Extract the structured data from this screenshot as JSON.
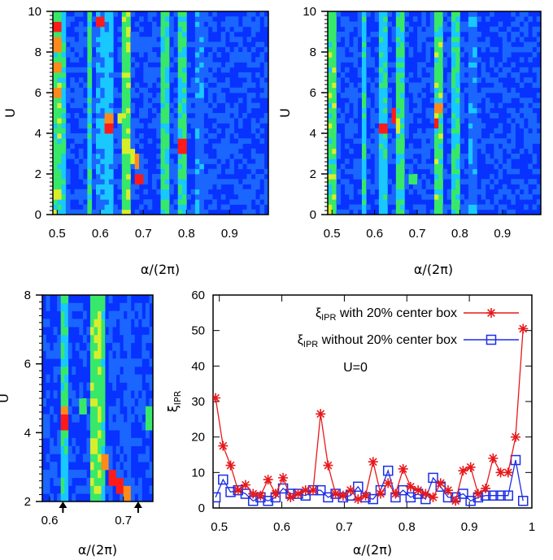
{
  "chart_data": [
    {
      "type": "heatmap",
      "panel": "top-left",
      "xlabel": "α/(2π)",
      "ylabel": "U",
      "xlim": [
        0.49,
        0.99
      ],
      "ylim": [
        0,
        10
      ],
      "xticks": [
        "0.5",
        "0.6",
        "0.7",
        "0.8",
        "0.9"
      ],
      "yticks": [
        "0",
        "2",
        "4",
        "6",
        "8",
        "10"
      ],
      "colors": {
        "background": "#0832ff",
        "low": "#1a66ff",
        "mid": "#19c8ff",
        "green": "#37e86a",
        "yellow": "#d8ee2a",
        "orange": "#ff8a1a",
        "red": "#ff1a1a"
      },
      "bands": [
        {
          "x": 0.497,
          "w": 0.012,
          "level": 0.55
        },
        {
          "x": 0.514,
          "w": 0.006,
          "level": 0.45
        },
        {
          "x": 0.575,
          "w": 0.008,
          "level": 0.45
        },
        {
          "x": 0.598,
          "w": 0.008,
          "level": 0.3
        },
        {
          "x": 0.619,
          "w": 0.006,
          "level": 0.35
        },
        {
          "x": 0.66,
          "w": 0.008,
          "level": 0.6
        },
        {
          "x": 0.667,
          "w": 0.006,
          "level": 0.5
        },
        {
          "x": 0.75,
          "w": 0.008,
          "level": 0.5
        },
        {
          "x": 0.791,
          "w": 0.008,
          "level": 0.5
        },
        {
          "x": 0.83,
          "w": 0.006,
          "level": 0.25
        }
      ],
      "hot": [
        {
          "x": 0.503,
          "y": 9.2,
          "level": 0.95
        },
        {
          "x": 0.503,
          "y": 8.4,
          "level": 0.85
        },
        {
          "x": 0.503,
          "y": 7.2,
          "level": 0.8
        },
        {
          "x": 0.503,
          "y": 6.0,
          "level": 0.85
        },
        {
          "x": 0.5,
          "y": 1.0,
          "level": 0.75
        },
        {
          "x": 0.6,
          "y": 9.5,
          "level": 0.95
        },
        {
          "x": 0.617,
          "y": 4.2,
          "level": 0.95
        },
        {
          "x": 0.622,
          "y": 4.6,
          "level": 0.8
        },
        {
          "x": 0.645,
          "y": 4.7,
          "level": 0.7
        },
        {
          "x": 0.66,
          "y": 3.4,
          "level": 0.7
        },
        {
          "x": 0.675,
          "y": 2.9,
          "level": 0.75
        },
        {
          "x": 0.685,
          "y": 2.6,
          "level": 0.85
        },
        {
          "x": 0.69,
          "y": 1.8,
          "level": 0.9
        },
        {
          "x": 0.791,
          "y": 3.4,
          "level": 0.9
        }
      ]
    },
    {
      "type": "heatmap",
      "panel": "top-right",
      "xlabel": "α/(2π)",
      "ylabel": "U",
      "xlim": [
        0.49,
        0.99
      ],
      "ylim": [
        0,
        10
      ],
      "xticks": [
        "0.5",
        "0.6",
        "0.7",
        "0.8",
        "0.9"
      ],
      "yticks": [
        "0",
        "2",
        "4",
        "6",
        "8",
        "10"
      ],
      "bands": [
        {
          "x": 0.497,
          "w": 0.012,
          "level": 0.55
        },
        {
          "x": 0.575,
          "w": 0.008,
          "level": 0.4
        },
        {
          "x": 0.619,
          "w": 0.006,
          "level": 0.4
        },
        {
          "x": 0.66,
          "w": 0.008,
          "level": 0.5
        },
        {
          "x": 0.75,
          "w": 0.008,
          "level": 0.55
        },
        {
          "x": 0.791,
          "w": 0.008,
          "level": 0.45
        },
        {
          "x": 0.83,
          "w": 0.006,
          "level": 0.25
        }
      ],
      "hot": [
        {
          "x": 0.617,
          "y": 4.3,
          "level": 0.9
        },
        {
          "x": 0.645,
          "y": 4.9,
          "level": 0.95
        },
        {
          "x": 0.655,
          "y": 4.4,
          "level": 0.7
        },
        {
          "x": 0.745,
          "y": 4.5,
          "level": 0.95
        },
        {
          "x": 0.75,
          "y": 5.2,
          "level": 0.8
        },
        {
          "x": 0.69,
          "y": 1.8,
          "level": 0.6
        }
      ]
    },
    {
      "type": "heatmap",
      "panel": "bottom-left",
      "xlabel": "α/(2π)",
      "ylabel": "U",
      "xlim": [
        0.59,
        0.74
      ],
      "ylim": [
        2,
        8
      ],
      "xticks": [
        "0.6",
        "0.7"
      ],
      "yticks": [
        "2",
        "4",
        "6",
        "8"
      ],
      "arrows_at": [
        0.618,
        0.72
      ],
      "bands": [
        {
          "x": 0.618,
          "w": 0.006,
          "level": 0.45
        },
        {
          "x": 0.663,
          "w": 0.008,
          "level": 0.6
        },
        {
          "x": 0.669,
          "w": 0.005,
          "level": 0.5
        },
        {
          "x": 0.708,
          "w": 0.004,
          "level": 0.2
        }
      ],
      "hot": [
        {
          "x": 0.618,
          "y": 4.3,
          "level": 0.95
        },
        {
          "x": 0.62,
          "y": 4.6,
          "level": 0.85
        },
        {
          "x": 0.645,
          "y": 4.8,
          "level": 0.65
        },
        {
          "x": 0.66,
          "y": 3.6,
          "level": 0.75
        },
        {
          "x": 0.675,
          "y": 3.1,
          "level": 0.85
        },
        {
          "x": 0.685,
          "y": 2.7,
          "level": 0.95
        },
        {
          "x": 0.695,
          "y": 2.5,
          "level": 0.9
        },
        {
          "x": 0.705,
          "y": 2.3,
          "level": 0.85
        },
        {
          "x": 0.735,
          "y": 4.4,
          "level": 0.55
        }
      ]
    },
    {
      "type": "line",
      "panel": "bottom-right",
      "xlabel": "α/(2π)",
      "ylabel": "ξIPR",
      "xlim": [
        0.49,
        1.0
      ],
      "ylim": [
        0,
        60
      ],
      "xticks": [
        0.5,
        0.6,
        0.7,
        0.8,
        0.9,
        1
      ],
      "yticks": [
        0,
        10,
        20,
        30,
        40,
        50,
        60
      ],
      "annotation": "U=0",
      "legend_position": "top-right",
      "series": [
        {
          "name": "ξIPR with 20% center box",
          "color": "#e8181a",
          "marker": "star",
          "x": [
            0.494,
            0.506,
            0.518,
            0.53,
            0.542,
            0.554,
            0.566,
            0.578,
            0.59,
            0.602,
            0.614,
            0.626,
            0.638,
            0.65,
            0.662,
            0.674,
            0.686,
            0.698,
            0.71,
            0.722,
            0.734,
            0.746,
            0.758,
            0.77,
            0.782,
            0.794,
            0.806,
            0.818,
            0.83,
            0.842,
            0.854,
            0.866,
            0.878,
            0.89,
            0.902,
            0.914,
            0.926,
            0.938,
            0.95,
            0.962,
            0.974,
            0.986
          ],
          "values": [
            31,
            17.5,
            12,
            5,
            6.5,
            4,
            3.5,
            8,
            4,
            8.5,
            3,
            4,
            5,
            5,
            26.5,
            12,
            4,
            3.5,
            5,
            2.5,
            3.5,
            13,
            4,
            7,
            4,
            11,
            6,
            5,
            4,
            3,
            7,
            5,
            2,
            10.5,
            11.5,
            4,
            5.5,
            14,
            10,
            10,
            20,
            50.5
          ]
        },
        {
          "name": "ξIPR without 20% center box",
          "color": "#1a2ee8",
          "marker": "square",
          "x": [
            0.494,
            0.506,
            0.518,
            0.53,
            0.542,
            0.554,
            0.566,
            0.578,
            0.59,
            0.602,
            0.614,
            0.626,
            0.638,
            0.65,
            0.662,
            0.674,
            0.686,
            0.698,
            0.71,
            0.722,
            0.734,
            0.746,
            0.758,
            0.77,
            0.782,
            0.794,
            0.806,
            0.818,
            0.83,
            0.842,
            0.854,
            0.866,
            0.878,
            0.89,
            0.902,
            0.914,
            0.926,
            0.938,
            0.95,
            0.962,
            0.974,
            0.986
          ],
          "values": [
            3,
            8,
            4.5,
            5,
            4,
            2,
            3,
            2,
            3,
            5.5,
            4,
            4,
            3.5,
            5,
            5,
            3,
            4,
            3,
            3.5,
            6,
            3,
            2.5,
            5,
            10.5,
            3,
            5,
            3,
            4,
            2.5,
            8.5,
            6,
            3,
            3,
            4,
            2,
            3,
            3.5,
            3.5,
            3.5,
            3.5,
            13.5,
            2
          ]
        }
      ]
    }
  ]
}
